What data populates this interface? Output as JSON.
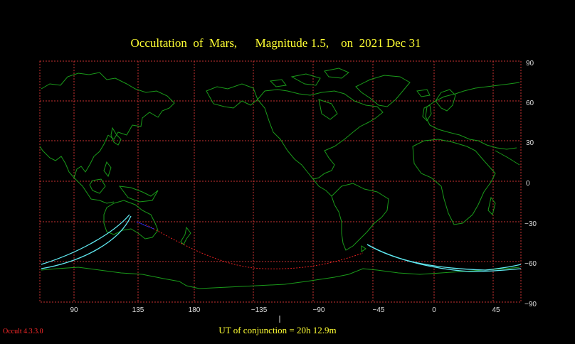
{
  "title": "Occultation  of  Mars,      Magnitude 1.5,    on  2021 Dec 31",
  "x_ticks": [
    "90",
    "135",
    "180",
    "−135",
    "−90",
    "−45",
    "0",
    "45"
  ],
  "y_ticks": [
    "90",
    "60",
    "30",
    "0",
    "−30",
    "−60",
    "−90"
  ],
  "ut_conjunction": "UT of conjunction = 20h 12.9m",
  "version": "Occult 4.3.3.0",
  "colors": {
    "background": "#000000",
    "grid": "#c83232",
    "coast": "#1a9a1a",
    "occultation_path": "#5fe8f0",
    "central_line": "#e02020",
    "text": "#ffff33"
  }
}
